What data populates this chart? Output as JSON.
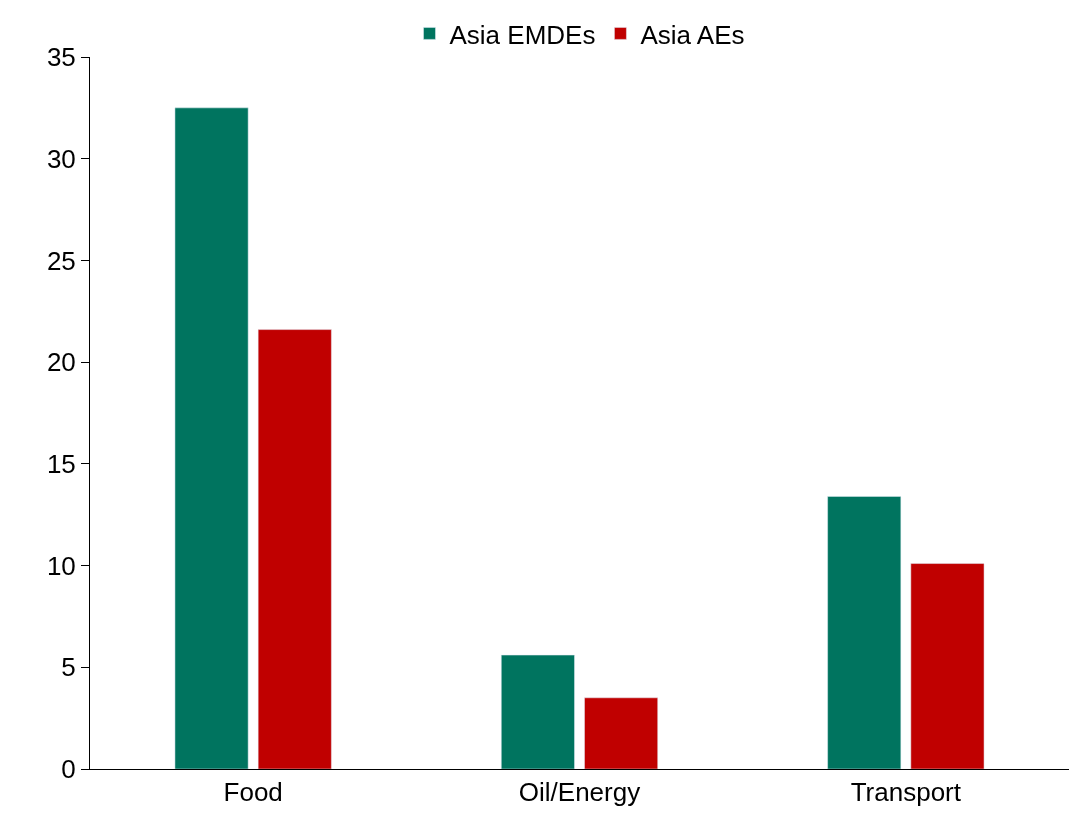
{
  "chart_data": {
    "type": "bar",
    "categories": [
      "Food",
      "Oil/Energy",
      "Transport"
    ],
    "series": [
      {
        "name": "Asia EMDEs",
        "color": "#00745f",
        "values": [
          32.5,
          5.6,
          13.4
        ]
      },
      {
        "name": "Asia AEs",
        "color": "#c00000",
        "values": [
          21.6,
          3.5,
          10.1
        ]
      }
    ],
    "ylim": [
      0,
      35
    ],
    "yticks": [
      0,
      5,
      10,
      15,
      20,
      25,
      30,
      35
    ],
    "legend": "top"
  }
}
